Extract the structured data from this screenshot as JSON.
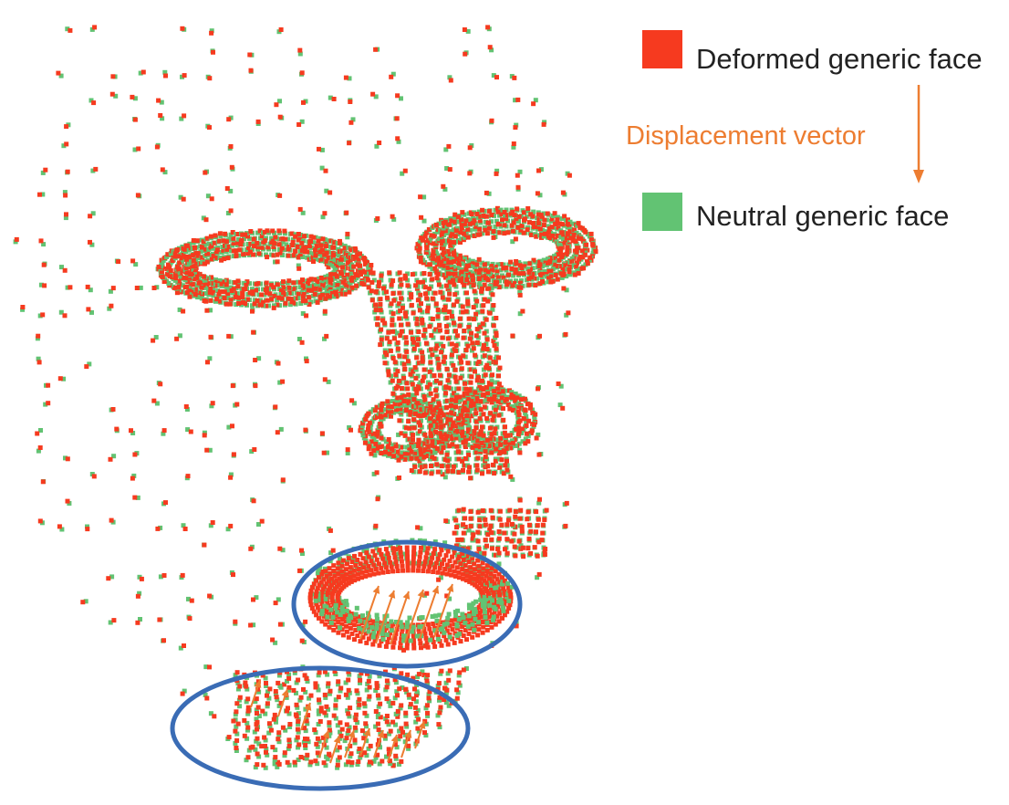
{
  "legend": {
    "deformed": {
      "label": "Deformed generic face",
      "color": "#f63a1f"
    },
    "vector": {
      "label": "Displacement vector",
      "color": "#ed7d31"
    },
    "neutral": {
      "label": "Neutral generic face",
      "color": "#62c373"
    }
  },
  "highlight_color": "#3a6cb5",
  "regions": [
    {
      "name": "mouth",
      "highlighted": true
    },
    {
      "name": "chin",
      "highlighted": true
    }
  ]
}
